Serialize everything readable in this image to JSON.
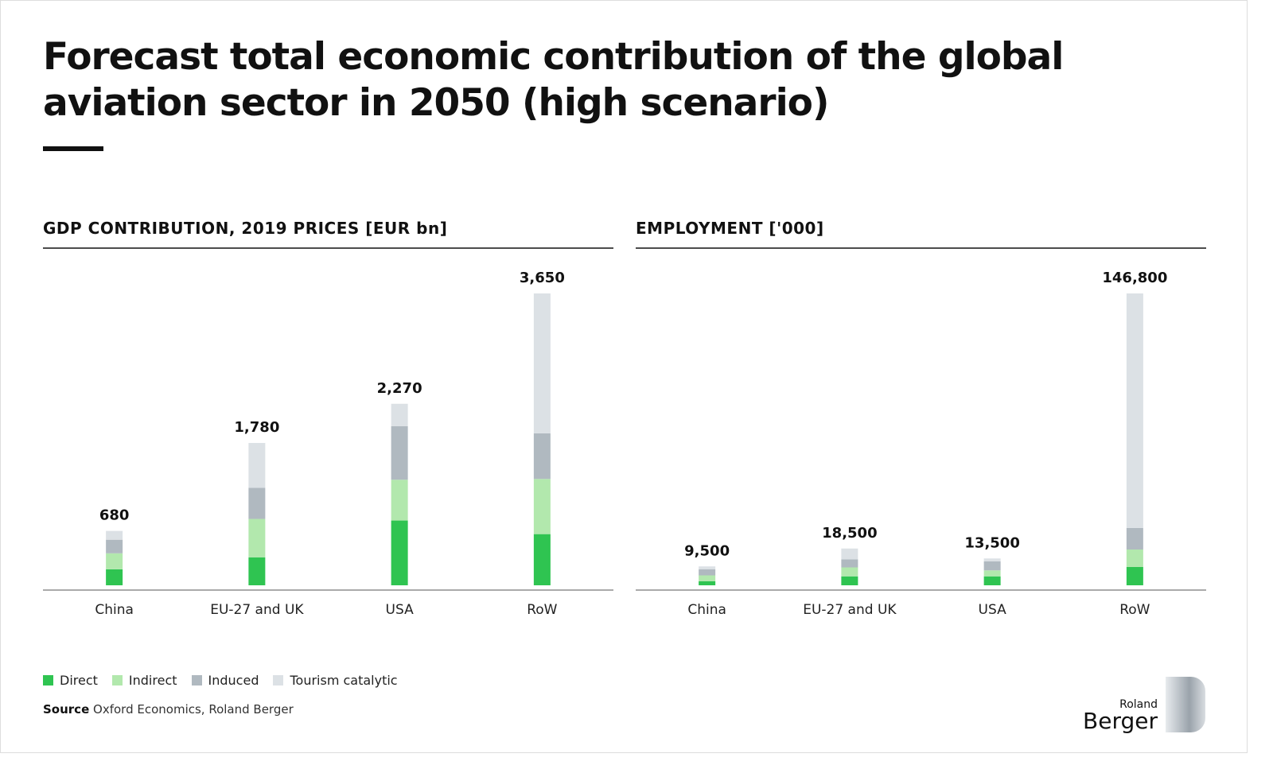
{
  "title": "Forecast total economic contribution of the global aviation sector in 2050 (high scenario)",
  "legend": [
    {
      "label": "Direct",
      "color": "#2fc451"
    },
    {
      "label": "Indirect",
      "color": "#b2e8ad"
    },
    {
      "label": "Induced",
      "color": "#b0b9c0"
    },
    {
      "label": "Tourism catalytic",
      "color": "#dce1e5"
    }
  ],
  "source_label": "Source",
  "source_text": "Oxford Economics, Roland Berger",
  "logo": {
    "small": "Roland",
    "big": "Berger"
  },
  "chart_data": [
    {
      "type": "bar",
      "stacked": true,
      "title": "GDP CONTRIBUTION, 2019 PRICES [EUR bn]",
      "categories": [
        "China",
        "EU-27 and UK",
        "USA",
        "RoW"
      ],
      "totals": [
        "680",
        "1,780",
        "2,270",
        "3,650"
      ],
      "total_values": [
        680,
        1780,
        2270,
        3650
      ],
      "series": [
        {
          "name": "Direct",
          "values": [
            200,
            350,
            810,
            640
          ]
        },
        {
          "name": "Indirect",
          "values": [
            200,
            480,
            510,
            690
          ]
        },
        {
          "name": "Induced",
          "values": [
            170,
            390,
            670,
            570
          ]
        },
        {
          "name": "Tourism catalytic",
          "values": [
            110,
            560,
            280,
            1750
          ]
        }
      ],
      "ylim": [
        0,
        3650
      ]
    },
    {
      "type": "bar",
      "stacked": true,
      "title": "EMPLOYMENT ['000]",
      "categories": [
        "China",
        "EU-27 and UK",
        "USA",
        "RoW"
      ],
      "totals": [
        "9,500",
        "18,500",
        "13,500",
        "146,800"
      ],
      "total_values": [
        9500,
        18500,
        13500,
        146800
      ],
      "series": [
        {
          "name": "Direct",
          "values": [
            2000,
            4500,
            4500,
            9200
          ]
        },
        {
          "name": "Indirect",
          "values": [
            3000,
            4500,
            3000,
            8800
          ]
        },
        {
          "name": "Induced",
          "values": [
            3000,
            4000,
            4500,
            10800
          ]
        },
        {
          "name": "Tourism catalytic",
          "values": [
            1500,
            5500,
            1500,
            118000
          ]
        }
      ],
      "ylim": [
        0,
        146800
      ]
    }
  ]
}
